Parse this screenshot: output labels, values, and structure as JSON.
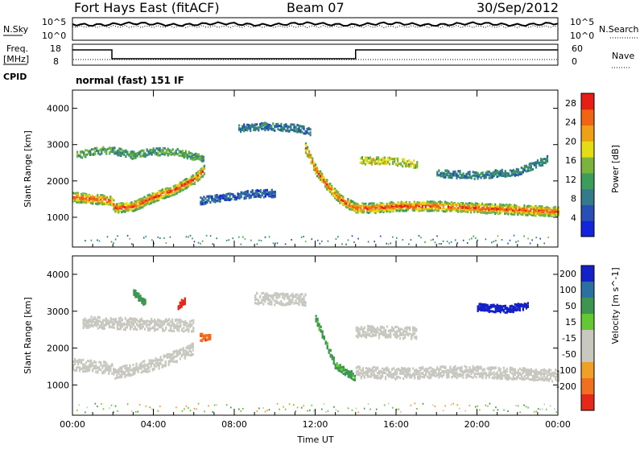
{
  "header": {
    "station": "Fort Hays East (fitACF)",
    "beam": "Beam 07",
    "date": "30/Sep/2012"
  },
  "noise_panel": {
    "left_label": "N.Sky",
    "right_label": "N.Search",
    "ticks": [
      "10^5",
      "10^0"
    ]
  },
  "freq_panel": {
    "left_label_line1": "Freq.",
    "left_label_line2": "[MHz]",
    "left_ticks": [
      "18",
      "8"
    ],
    "right_label": "Nave",
    "right_ticks": [
      "60",
      "0"
    ]
  },
  "cpid_panel": {
    "label": "CPID",
    "text": "normal (fast) 151 IF"
  },
  "colors": {
    "power_scale": [
      "#1424dc",
      "#2850b4",
      "#327a8c",
      "#3c9c5a",
      "#7ab43c",
      "#e6dc14",
      "#f0a014",
      "#f06414",
      "#e61e14"
    ],
    "velocity_scale": [
      "#1420c8",
      "#2a70a0",
      "#3c9650",
      "#64c832",
      "#c8c8c0",
      "#c8c8c0",
      "#f0a028",
      "#f07020",
      "#e62818"
    ]
  },
  "chart_data": [
    {
      "type": "heatmap",
      "name": "Power",
      "ylabel": "Slant Range [km]",
      "x_ticks": [
        "00:00",
        "04:00",
        "08:00",
        "12:00",
        "16:00",
        "20:00",
        "00:00"
      ],
      "y_ticks": [
        1000,
        2000,
        3000,
        4000
      ],
      "ylim": [
        180,
        4500
      ],
      "xlim_hours": [
        0,
        24
      ],
      "colorbar_label": "Power [dB]",
      "colorbar_ticks": [
        4,
        8,
        12,
        16,
        20,
        24,
        28
      ],
      "colorbar_range": [
        0,
        30
      ],
      "echo_bands": [
        {
          "band": "strong",
          "points": [
            [
              0,
              1550
            ],
            [
              1,
              1500
            ],
            [
              1.9,
              1450
            ],
            [
              2.1,
              1250
            ],
            [
              3,
              1300
            ],
            [
              4,
              1550
            ],
            [
              5,
              1750
            ],
            [
              6,
              2050
            ],
            [
              6.5,
              2300
            ]
          ],
          "value": 26
        },
        {
          "band": "strong",
          "points": [
            [
              11.5,
              2900
            ],
            [
              12,
              2300
            ],
            [
              12.6,
              1850
            ],
            [
              13.3,
              1450
            ],
            [
              14,
              1250
            ],
            [
              15,
              1250
            ],
            [
              16,
              1300
            ],
            [
              18,
              1300
            ],
            [
              20,
              1250
            ],
            [
              22,
              1200
            ],
            [
              24,
              1150
            ]
          ],
          "value": 26
        },
        {
          "band": "weak",
          "points": [
            [
              0.2,
              2700
            ],
            [
              1,
              2800
            ],
            [
              1.9,
              2850
            ],
            [
              3,
              2700
            ],
            [
              4,
              2800
            ],
            [
              5,
              2800
            ],
            [
              6.5,
              2600
            ]
          ],
          "value": 12
        },
        {
          "band": "weak",
          "points": [
            [
              14.2,
              2550
            ],
            [
              15.5,
              2550
            ],
            [
              17,
              2450
            ]
          ],
          "value": 17
        },
        {
          "band": "weak",
          "points": [
            [
              8.2,
              3450
            ],
            [
              9.5,
              3500
            ],
            [
              11,
              3450
            ],
            [
              11.8,
              3350
            ]
          ],
          "value": 8
        },
        {
          "band": "weak",
          "points": [
            [
              6.3,
              1450
            ],
            [
              7.5,
              1550
            ],
            [
              9,
              1650
            ],
            [
              10,
              1650
            ]
          ],
          "value": 6
        },
        {
          "band": "weak",
          "points": [
            [
              18,
              2200
            ],
            [
              20,
              2150
            ],
            [
              22,
              2250
            ],
            [
              23.5,
              2600
            ]
          ],
          "value": 9
        }
      ]
    },
    {
      "type": "heatmap",
      "name": "Velocity",
      "ylabel": "Slant Range [km]",
      "xlabel": "Time UT",
      "x_ticks": [
        "00:00",
        "04:00",
        "08:00",
        "12:00",
        "16:00",
        "20:00",
        "00:00"
      ],
      "y_ticks": [
        1000,
        2000,
        3000,
        4000
      ],
      "ylim": [
        180,
        4500
      ],
      "xlim_hours": [
        0,
        24
      ],
      "colorbar_label": "Velocity [m s^-1]",
      "colorbar_ticks": [
        200,
        100,
        50,
        15,
        -15,
        -50,
        -100,
        -200
      ],
      "echo_bands": [
        {
          "band": "ground",
          "points": [
            [
              0,
              1550
            ],
            [
              2,
              1450
            ],
            [
              2.1,
              1300
            ],
            [
              4,
              1550
            ],
            [
              5,
              1750
            ],
            [
              6,
              2000
            ]
          ],
          "value": 0
        },
        {
          "band": "ground",
          "points": [
            [
              14,
              1350
            ],
            [
              16,
              1300
            ],
            [
              18,
              1350
            ],
            [
              20,
              1350
            ],
            [
              22,
              1300
            ],
            [
              24,
              1250
            ]
          ],
          "value": 0
        },
        {
          "band": "ground",
          "points": [
            [
              0.5,
              2700
            ],
            [
              3,
              2650
            ],
            [
              6,
              2600
            ]
          ],
          "value": 0
        },
        {
          "band": "ground",
          "points": [
            [
              9,
              3350
            ],
            [
              11.5,
              3300
            ]
          ],
          "value": 0
        },
        {
          "band": "ground",
          "points": [
            [
              14,
              2450
            ],
            [
              17,
              2400
            ]
          ],
          "value": 0
        },
        {
          "band": "positive",
          "points": [
            [
              12,
              2800
            ],
            [
              13,
              1500
            ],
            [
              14,
              1200
            ]
          ],
          "value": 60
        },
        {
          "band": "positive",
          "points": [
            [
              20,
              3100
            ],
            [
              21.5,
              3050
            ],
            [
              22.5,
              3150
            ]
          ],
          "value": 230
        },
        {
          "band": "positive",
          "points": [
            [
              3,
              3500
            ],
            [
              3.6,
              3200
            ]
          ],
          "value": 80
        },
        {
          "band": "negative",
          "points": [
            [
              5.2,
              3150
            ],
            [
              5.6,
              3300
            ]
          ],
          "value": -200
        },
        {
          "band": "negative",
          "points": [
            [
              6.3,
              2300
            ],
            [
              6.8,
              2250
            ]
          ],
          "value": -90
        }
      ]
    }
  ]
}
